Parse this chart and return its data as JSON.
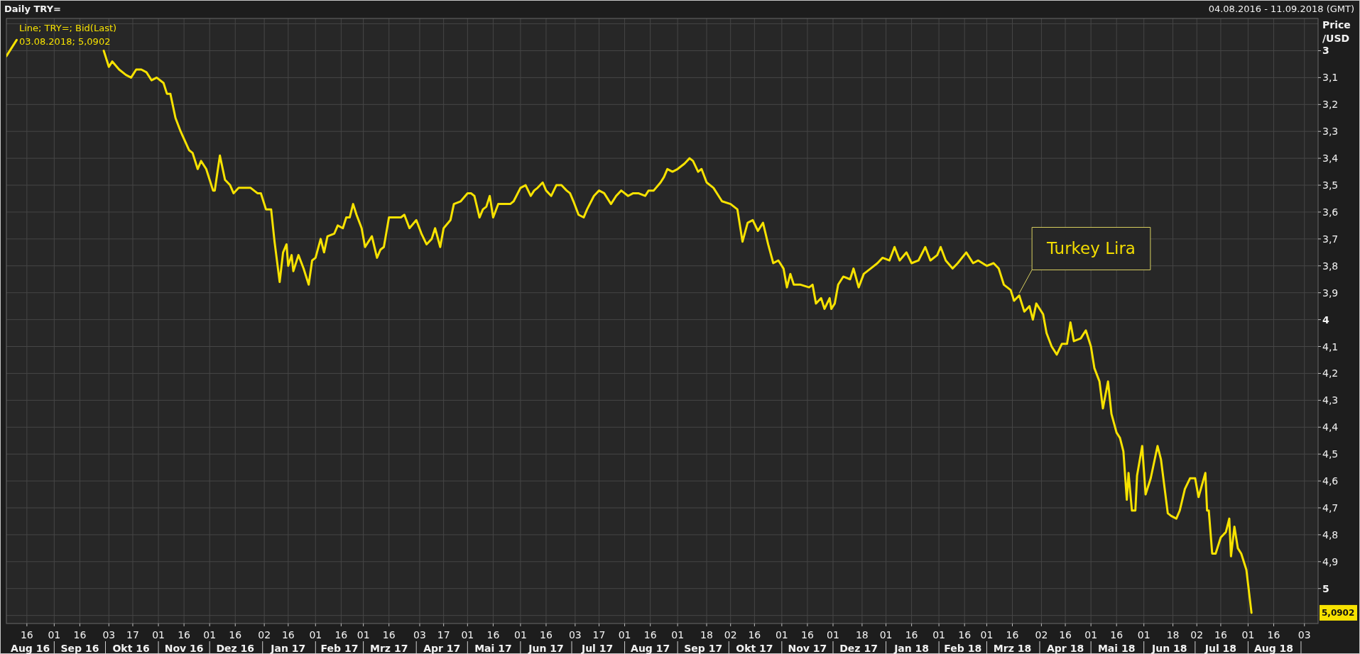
{
  "chart_data": {
    "type": "line",
    "title": "Daily TRY=",
    "subtitle": "04.08.2016 - 11.09.2018 (GMT)",
    "ylabel": "Price /USD",
    "legend": "top left",
    "grid": true,
    "xlim": [
      "2016-08-04",
      "2018-09-11"
    ],
    "ylim": [
      5.13,
      2.88
    ],
    "yticks": [
      {
        "value": 2.9,
        "label": null
      },
      3,
      {
        "value": 3.1,
        "label": "3,1"
      },
      {
        "value": 3.2,
        "label": "3,2"
      },
      {
        "value": 3.3,
        "label": "3,3"
      },
      {
        "value": 3.4,
        "label": "3,4"
      },
      {
        "value": 3.5,
        "label": "3,5"
      },
      {
        "value": 3.6,
        "label": "3,6"
      },
      {
        "value": 3.7,
        "label": "3,7"
      },
      {
        "value": 3.8,
        "label": "3,8"
      },
      {
        "value": 3.9,
        "label": "3,9"
      },
      4,
      {
        "value": 4.1,
        "label": "4,1"
      },
      {
        "value": 4.2,
        "label": "4,2"
      },
      {
        "value": 4.3,
        "label": "4,3"
      },
      {
        "value": 4.4,
        "label": "4,4"
      },
      {
        "value": 4.5,
        "label": "4,5"
      },
      {
        "value": 4.6,
        "label": "4,6"
      },
      {
        "value": 4.7,
        "label": "4,7"
      },
      {
        "value": 4.8,
        "label": "4,8"
      },
      {
        "value": 4.9,
        "label": "4,9"
      },
      5,
      {
        "value": 5.1,
        "label": null
      }
    ],
    "xticks": [
      {
        "value": "2016-08-16",
        "label": "16"
      },
      {
        "value": "2016-09-01",
        "label": "01"
      },
      {
        "value": "2016-09-16",
        "label": "16"
      },
      {
        "value": "2016-10-03",
        "label": "03"
      },
      {
        "value": "2016-10-17",
        "label": "17"
      },
      {
        "value": "2016-11-01",
        "label": "01"
      },
      {
        "value": "2016-11-16",
        "label": "16"
      },
      {
        "value": "2016-12-01",
        "label": "01"
      },
      {
        "value": "2016-12-16",
        "label": "16"
      },
      {
        "value": "2017-01-02",
        "label": "02"
      },
      {
        "value": "2017-01-16",
        "label": "16"
      },
      {
        "value": "2017-02-01",
        "label": "01"
      },
      {
        "value": "2017-02-16",
        "label": "16"
      },
      {
        "value": "2017-03-01",
        "label": "01"
      },
      {
        "value": "2017-03-16",
        "label": "16"
      },
      {
        "value": "2017-04-03",
        "label": "03"
      },
      {
        "value": "2017-04-17",
        "label": "17"
      },
      {
        "value": "2017-05-01",
        "label": "01"
      },
      {
        "value": "2017-05-16",
        "label": "16"
      },
      {
        "value": "2017-06-01",
        "label": "01"
      },
      {
        "value": "2017-06-16",
        "label": "16"
      },
      {
        "value": "2017-07-03",
        "label": "03"
      },
      {
        "value": "2017-07-17",
        "label": "17"
      },
      {
        "value": "2017-08-01",
        "label": "01"
      },
      {
        "value": "2017-08-16",
        "label": "16"
      },
      {
        "value": "2017-09-01",
        "label": "01"
      },
      {
        "value": "2017-09-18",
        "label": "18"
      },
      {
        "value": "2017-10-02",
        "label": "02"
      },
      {
        "value": "2017-10-16",
        "label": "16"
      },
      {
        "value": "2017-11-01",
        "label": "01"
      },
      {
        "value": "2017-11-16",
        "label": "16"
      },
      {
        "value": "2017-12-01",
        "label": "01"
      },
      {
        "value": "2017-12-18",
        "label": "18"
      },
      {
        "value": "2018-01-01",
        "label": "01"
      },
      {
        "value": "2018-01-16",
        "label": "16"
      },
      {
        "value": "2018-02-01",
        "label": "01"
      },
      {
        "value": "2018-02-16",
        "label": "16"
      },
      {
        "value": "2018-03-01",
        "label": "01"
      },
      {
        "value": "2018-03-16",
        "label": "16"
      },
      {
        "value": "2018-04-02",
        "label": "02"
      },
      {
        "value": "2018-04-16",
        "label": "16"
      },
      {
        "value": "2018-05-01",
        "label": "01"
      },
      {
        "value": "2018-05-16",
        "label": "16"
      },
      {
        "value": "2018-06-01",
        "label": "01"
      },
      {
        "value": "2018-06-18",
        "label": "18"
      },
      {
        "value": "2018-07-02",
        "label": "02"
      },
      {
        "value": "2018-07-16",
        "label": "16"
      },
      {
        "value": "2018-08-01",
        "label": "01"
      },
      {
        "value": "2018-08-16",
        "label": "16"
      },
      {
        "value": "2018-09-03",
        "label": "03"
      }
    ],
    "x2lim": [
      "2016-08-04",
      "2018-09-11"
    ],
    "x2ticks": [
      {
        "value": "2016-08-18",
        "label": "Aug 16"
      },
      {
        "value": "2016-09-01",
        "label": null
      },
      {
        "value": "2016-09-16",
        "label": "Sep 16"
      },
      {
        "value": "2016-10-01",
        "label": null
      },
      {
        "value": "2016-10-16",
        "label": "Okt 16"
      },
      {
        "value": "2016-11-01",
        "label": null
      },
      {
        "value": "2016-11-16",
        "label": "Nov 16"
      },
      {
        "value": "2016-12-01",
        "label": null
      },
      {
        "value": "2016-12-16",
        "label": "Dez 16"
      },
      {
        "value": "2017-01-01",
        "label": null
      },
      {
        "value": "2017-01-16",
        "label": "Jan 17"
      },
      {
        "value": "2017-02-01",
        "label": null
      },
      {
        "value": "2017-02-15",
        "label": "Feb 17"
      },
      {
        "value": "2017-03-01",
        "label": null
      },
      {
        "value": "2017-03-16",
        "label": "Mrz 17"
      },
      {
        "value": "2017-04-01",
        "label": null
      },
      {
        "value": "2017-04-16",
        "label": "Apr 17"
      },
      {
        "value": "2017-05-01",
        "label": null
      },
      {
        "value": "2017-05-16",
        "label": "Mai 17"
      },
      {
        "value": "2017-06-01",
        "label": null
      },
      {
        "value": "2017-06-16",
        "label": "Jun 17"
      },
      {
        "value": "2017-07-01",
        "label": null
      },
      {
        "value": "2017-07-16",
        "label": "Jul 17"
      },
      {
        "value": "2017-08-01",
        "label": null
      },
      {
        "value": "2017-08-16",
        "label": "Aug 17"
      },
      {
        "value": "2017-09-01",
        "label": null
      },
      {
        "value": "2017-09-16",
        "label": "Sep 17"
      },
      {
        "value": "2017-10-01",
        "label": null
      },
      {
        "value": "2017-10-16",
        "label": "Okt 17"
      },
      {
        "value": "2017-11-01",
        "label": null
      },
      {
        "value": "2017-11-16",
        "label": "Nov 17"
      },
      {
        "value": "2017-12-01",
        "label": null
      },
      {
        "value": "2017-12-16",
        "label": "Dez 17"
      },
      {
        "value": "2018-01-01",
        "label": null
      },
      {
        "value": "2018-01-16",
        "label": "Jan 18"
      },
      {
        "value": "2018-02-01",
        "label": null
      },
      {
        "value": "2018-02-15",
        "label": "Feb 18"
      },
      {
        "value": "2018-03-01",
        "label": null
      },
      {
        "value": "2018-03-16",
        "label": "Mrz 18"
      },
      {
        "value": "2018-04-01",
        "label": null
      },
      {
        "value": "2018-04-16",
        "label": "Apr 18"
      },
      {
        "value": "2018-05-01",
        "label": null
      },
      {
        "value": "2018-05-16",
        "label": "Mai 18"
      },
      {
        "value": "2018-06-01",
        "label": null
      },
      {
        "value": "2018-06-16",
        "label": "Jun 18"
      },
      {
        "value": "2018-07-01",
        "label": null
      },
      {
        "value": "2018-07-16",
        "label": "Jul 18"
      },
      {
        "value": "2018-08-01",
        "label": null
      },
      {
        "value": "2018-08-16",
        "label": "Aug 18"
      },
      {
        "value": "2018-09-01",
        "label": null
      }
    ],
    "annotations": [
      "03.08.2018; 5,0902",
      "5,0902",
      {
        "text": "Turkey Lira",
        "x": "2018-03-20",
        "y": 3.91
      }
    ],
    "x": [
      "2016-08-04",
      "2016-08-10",
      "2016-09-01",
      "2016-09-30",
      "2016-10-03",
      "2016-10-05",
      "2016-10-09",
      "2016-10-13",
      "2016-10-16",
      "2016-10-19",
      "2016-10-22",
      "2016-10-25",
      "2016-10-28",
      "2016-10-31",
      "2016-11-04",
      "2016-11-06",
      "2016-11-08",
      "2016-11-11",
      "2016-11-14",
      "2016-11-19",
      "2016-11-21",
      "2016-11-24",
      "2016-11-26",
      "2016-11-29",
      "2016-12-03",
      "2016-12-04",
      "2016-12-07",
      "2016-12-10",
      "2016-12-13",
      "2016-12-15",
      "2016-12-18",
      "2016-12-21",
      "2016-12-25",
      "2016-12-29",
      "2016-12-31",
      "2017-01-03",
      "2017-01-06",
      "2017-01-08",
      "2017-01-11",
      "2017-01-13",
      "2017-01-15",
      "2017-01-16",
      "2017-01-18",
      "2017-01-19",
      "2017-01-22",
      "2017-01-25",
      "2017-01-28",
      "2017-01-30",
      "2017-02-01",
      "2017-02-04",
      "2017-02-06",
      "2017-02-08",
      "2017-02-12",
      "2017-02-14",
      "2017-02-17",
      "2017-02-19",
      "2017-02-21",
      "2017-02-23",
      "2017-02-25",
      "2017-02-28",
      "2017-03-02",
      "2017-03-04",
      "2017-03-06",
      "2017-03-09",
      "2017-03-11",
      "2017-03-13",
      "2017-03-16",
      "2017-03-19",
      "2017-03-23",
      "2017-03-25",
      "2017-03-28",
      "2017-04-01",
      "2017-04-04",
      "2017-04-07",
      "2017-04-10",
      "2017-04-12",
      "2017-04-15",
      "2017-04-17",
      "2017-04-21",
      "2017-04-23",
      "2017-04-27",
      "2017-05-01",
      "2017-05-03",
      "2017-05-05",
      "2017-05-08",
      "2017-05-10",
      "2017-05-12",
      "2017-05-14",
      "2017-05-16",
      "2017-05-19",
      "2017-05-22",
      "2017-05-26",
      "2017-05-28",
      "2017-06-01",
      "2017-06-04",
      "2017-06-07",
      "2017-06-09",
      "2017-06-11",
      "2017-06-14",
      "2017-06-16",
      "2017-06-19",
      "2017-06-22",
      "2017-06-25",
      "2017-06-28",
      "2017-06-30",
      "2017-07-02",
      "2017-07-05",
      "2017-07-08",
      "2017-07-10",
      "2017-07-14",
      "2017-07-17",
      "2017-07-20",
      "2017-07-24",
      "2017-07-27",
      "2017-07-30",
      "2017-08-03",
      "2017-08-06",
      "2017-08-09",
      "2017-08-13",
      "2017-08-15",
      "2017-08-18",
      "2017-08-22",
      "2017-08-24",
      "2017-08-26",
      "2017-08-29",
      "2017-09-01",
      "2017-09-05",
      "2017-09-08",
      "2017-09-10",
      "2017-09-13",
      "2017-09-15",
      "2017-09-18",
      "2017-09-22",
      "2017-09-27",
      "2017-10-02",
      "2017-10-06",
      "2017-10-09",
      "2017-10-12",
      "2017-10-15",
      "2017-10-18",
      "2017-10-21",
      "2017-10-24",
      "2017-10-27",
      "2017-10-30",
      "2017-11-02",
      "2017-11-04",
      "2017-11-06",
      "2017-11-08",
      "2017-11-12",
      "2017-11-17",
      "2017-11-19",
      "2017-11-21",
      "2017-11-24",
      "2017-11-26",
      "2017-11-29",
      "2017-11-30",
      "2017-12-02",
      "2017-12-04",
      "2017-12-07",
      "2017-12-11",
      "2017-12-13",
      "2017-12-16",
      "2017-12-19",
      "2017-12-23",
      "2017-12-27",
      "2017-12-30",
      "2018-01-03",
      "2018-01-06",
      "2018-01-09",
      "2018-01-13",
      "2018-01-16",
      "2018-01-20",
      "2018-01-24",
      "2018-01-27",
      "2018-01-31",
      "2018-02-02",
      "2018-02-05",
      "2018-02-09",
      "2018-02-12",
      "2018-02-17",
      "2018-02-21",
      "2018-02-24",
      "2018-03-01",
      "2018-03-05",
      "2018-03-08",
      "2018-03-11",
      "2018-03-15",
      "2018-03-17",
      "2018-03-20",
      "2018-03-23",
      "2018-03-26",
      "2018-03-28",
      "2018-03-30",
      "2018-04-03",
      "2018-04-05",
      "2018-04-08",
      "2018-04-11",
      "2018-04-14",
      "2018-04-17",
      "2018-04-19",
      "2018-04-21",
      "2018-04-25",
      "2018-04-28",
      "2018-05-01",
      "2018-05-03",
      "2018-05-06",
      "2018-05-08",
      "2018-05-11",
      "2018-05-13",
      "2018-05-16",
      "2018-05-18",
      "2018-05-20",
      "2018-05-22",
      "2018-05-23",
      "2018-05-25",
      "2018-05-27",
      "2018-05-28",
      "2018-05-31",
      "2018-06-02",
      "2018-06-05",
      "2018-06-09",
      "2018-06-11",
      "2018-06-15",
      "2018-06-17",
      "2018-06-20",
      "2018-06-22",
      "2018-06-25",
      "2018-06-28",
      "2018-07-01",
      "2018-07-03",
      "2018-07-07",
      "2018-07-08",
      "2018-07-09",
      "2018-07-11",
      "2018-07-13",
      "2018-07-16",
      "2018-07-19",
      "2018-07-21",
      "2018-07-22",
      "2018-07-24",
      "2018-07-26",
      "2018-07-28",
      "2018-07-31",
      "2018-08-03"
    ],
    "series": [
      {
        "name": "Line; TRY=; Bid(Last)",
        "color": "#f7e200",
        "values": [
          3.02,
          2.96,
          null,
          3.0,
          3.06,
          3.04,
          3.07,
          3.09,
          3.1,
          3.07,
          3.07,
          3.08,
          3.11,
          3.1,
          3.12,
          3.16,
          3.16,
          3.25,
          3.3,
          3.37,
          3.38,
          3.44,
          3.41,
          3.44,
          3.52,
          3.52,
          3.39,
          3.48,
          3.5,
          3.53,
          3.51,
          3.51,
          3.51,
          3.53,
          3.53,
          3.59,
          3.59,
          3.71,
          3.86,
          3.75,
          3.72,
          3.8,
          3.76,
          3.82,
          3.76,
          3.81,
          3.87,
          3.78,
          3.77,
          3.7,
          3.75,
          3.69,
          3.68,
          3.65,
          3.66,
          3.62,
          3.62,
          3.57,
          3.61,
          3.66,
          3.73,
          3.71,
          3.69,
          3.77,
          3.74,
          3.73,
          3.62,
          3.62,
          3.62,
          3.61,
          3.66,
          3.63,
          3.68,
          3.72,
          3.7,
          3.66,
          3.73,
          3.66,
          3.63,
          3.57,
          3.56,
          3.53,
          3.53,
          3.54,
          3.62,
          3.59,
          3.58,
          3.54,
          3.62,
          3.57,
          3.57,
          3.57,
          3.56,
          3.51,
          3.5,
          3.54,
          3.52,
          3.51,
          3.49,
          3.52,
          3.54,
          3.5,
          3.5,
          3.52,
          3.53,
          3.56,
          3.61,
          3.62,
          3.59,
          3.54,
          3.52,
          3.53,
          3.57,
          3.54,
          3.52,
          3.54,
          3.53,
          3.53,
          3.54,
          3.52,
          3.52,
          3.49,
          3.47,
          3.44,
          3.45,
          3.44,
          3.42,
          3.4,
          3.41,
          3.45,
          3.44,
          3.49,
          3.51,
          3.56,
          3.57,
          3.59,
          3.71,
          3.64,
          3.63,
          3.67,
          3.64,
          3.72,
          3.79,
          3.78,
          3.81,
          3.88,
          3.83,
          3.87,
          3.87,
          3.88,
          3.87,
          3.94,
          3.92,
          3.96,
          3.92,
          3.96,
          3.94,
          3.87,
          3.84,
          3.85,
          3.81,
          3.88,
          3.83,
          3.81,
          3.79,
          3.77,
          3.78,
          3.73,
          3.78,
          3.75,
          3.79,
          3.78,
          3.73,
          3.78,
          3.76,
          3.73,
          3.78,
          3.81,
          3.79,
          3.75,
          3.79,
          3.78,
          3.8,
          3.79,
          3.81,
          3.87,
          3.89,
          3.93,
          3.91,
          3.97,
          3.95,
          4.0,
          3.94,
          3.98,
          4.05,
          4.1,
          4.13,
          4.09,
          4.09,
          4.01,
          4.08,
          4.07,
          4.04,
          4.1,
          4.18,
          4.23,
          4.33,
          4.23,
          4.35,
          4.42,
          4.44,
          4.49,
          4.67,
          4.57,
          4.71,
          4.71,
          4.58,
          4.47,
          4.65,
          4.59,
          4.47,
          4.52,
          4.72,
          4.73,
          4.74,
          4.71,
          4.63,
          4.59,
          4.59,
          4.66,
          4.57,
          4.71,
          4.71,
          4.87,
          4.87,
          4.81,
          4.79,
          4.74,
          4.88,
          4.77,
          4.85,
          4.87,
          4.93,
          5.0902
        ]
      }
    ]
  }
}
